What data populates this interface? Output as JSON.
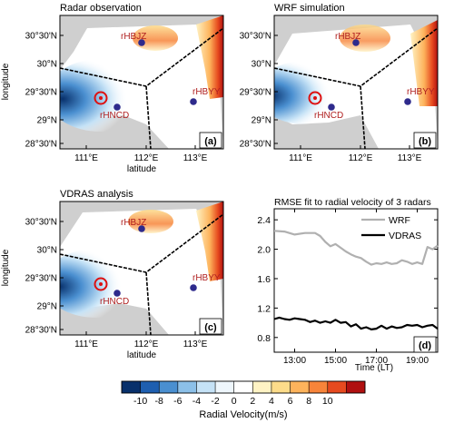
{
  "figure": {
    "colorbar": {
      "label": "Radial Velocity(m/s)",
      "ticks": [
        "-10",
        "-8",
        "-6",
        "-4",
        "-2",
        "0",
        "2",
        "4",
        "6",
        "8",
        "10"
      ],
      "colors": [
        "#08306b",
        "#1e5fb0",
        "#4a8fd0",
        "#8cc0e8",
        "#c5e2f6",
        "#eef6fc",
        "#ffffff",
        "#fff3c4",
        "#fddc8a",
        "#fdb35c",
        "#f7843a",
        "#e64a1f",
        "#b01010"
      ]
    },
    "lat_ticks": [
      "30°30'N",
      "30°N",
      "29°30'N",
      "29°N",
      "28°30'N"
    ],
    "lon_ticks": [
      "111°E",
      "112°E",
      "113°E"
    ],
    "ylabel": "longitude",
    "xlabel": "latitude",
    "stations": {
      "hbjz": "rHBJZ",
      "hbyy": "rHBYY",
      "hncd": "rHNCD"
    },
    "panels": [
      {
        "title": "Radar observation",
        "tag": "(a)"
      },
      {
        "title": "WRF simulation",
        "tag": "(b)"
      },
      {
        "title": "VDRAS analysis",
        "tag": "(c)"
      }
    ]
  },
  "chart_data": {
    "type": "line",
    "title": "RMSE fit to radial velocity of 3 radars",
    "xlabel": "Time (LT)",
    "ylabel": "",
    "tag": "(d)",
    "x_ticks": [
      "13:00",
      "15:00",
      "17:00",
      "19:00"
    ],
    "x_tick_values": [
      13,
      15,
      17,
      19
    ],
    "y_ticks": [
      "0.8",
      "1.2",
      "1.6",
      "2.0",
      "2.4"
    ],
    "y_tick_values": [
      0.8,
      1.2,
      1.6,
      2.0,
      2.4
    ],
    "xlim": [
      12.0,
      20.0
    ],
    "ylim": [
      0.6,
      2.55
    ],
    "legend_position": "top-right",
    "series": [
      {
        "name": "WRF",
        "color": "#b0b0b0",
        "x": [
          12.0,
          12.5,
          13.0,
          13.5,
          14.0,
          14.25,
          14.5,
          14.75,
          15.0,
          15.25,
          15.5,
          15.75,
          16.0,
          16.25,
          16.5,
          16.75,
          17.0,
          17.25,
          17.5,
          17.75,
          18.0,
          18.25,
          18.5,
          18.75,
          19.0,
          19.25,
          19.5,
          19.75,
          20.0
        ],
        "values": [
          2.25,
          2.24,
          2.2,
          2.22,
          2.22,
          2.18,
          2.1,
          2.04,
          2.07,
          2.02,
          1.97,
          1.93,
          1.9,
          1.88,
          1.83,
          1.79,
          1.81,
          1.8,
          1.82,
          1.8,
          1.81,
          1.85,
          1.83,
          1.8,
          1.82,
          1.8,
          2.03,
          2.0,
          2.05
        ]
      },
      {
        "name": "VDRAS",
        "color": "#000000",
        "x": [
          12.0,
          12.25,
          12.5,
          12.75,
          13.0,
          13.25,
          13.5,
          13.75,
          14.0,
          14.25,
          14.5,
          14.75,
          15.0,
          15.25,
          15.5,
          15.75,
          16.0,
          16.25,
          16.5,
          16.75,
          17.0,
          17.25,
          17.5,
          17.75,
          18.0,
          18.25,
          18.5,
          18.75,
          19.0,
          19.25,
          19.5,
          19.75,
          20.0
        ],
        "values": [
          1.05,
          1.07,
          1.05,
          1.04,
          1.06,
          1.05,
          1.04,
          1.01,
          1.03,
          1.0,
          1.02,
          1.0,
          1.04,
          1.0,
          1.01,
          0.95,
          0.98,
          0.92,
          0.94,
          0.91,
          0.92,
          0.96,
          0.92,
          0.95,
          0.93,
          0.94,
          0.97,
          0.96,
          0.97,
          0.94,
          0.96,
          0.97,
          0.92
        ]
      }
    ]
  }
}
